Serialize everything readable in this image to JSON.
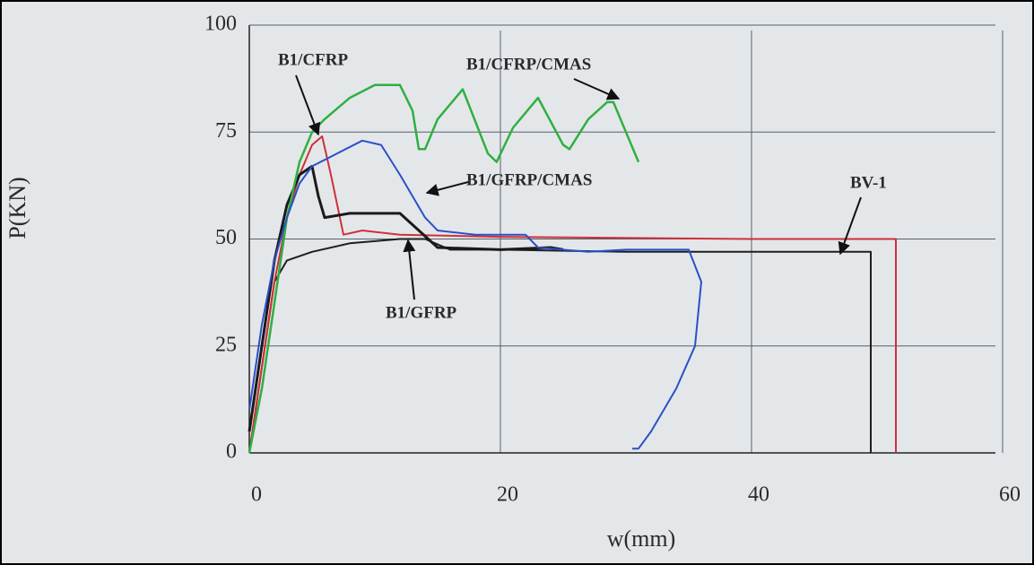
{
  "chart_data": {
    "type": "line",
    "x_label": "w(mm)",
    "y_label": "P(KN)",
    "xlim": [
      0,
      60
    ],
    "ylim": [
      0,
      100
    ],
    "xticks": [
      0,
      20,
      40,
      60
    ],
    "yticks": [
      0,
      25,
      50,
      75,
      100
    ],
    "grid": true,
    "series": [
      {
        "name": "BV-1",
        "color": "#1e1e1e",
        "x": [
          0,
          1,
          2,
          3,
          5,
          8,
          12,
          14,
          16,
          20,
          30,
          40,
          49.5,
          49.5
        ],
        "values": [
          0,
          20,
          40,
          45,
          47,
          49,
          50,
          50,
          47.5,
          47.5,
          47,
          47,
          47,
          0
        ]
      },
      {
        "name": "B1/CFRP",
        "color": "#d0303a",
        "x": [
          0,
          1,
          2,
          3,
          4,
          5,
          5.8,
          6.5,
          7.5,
          9,
          12,
          20,
          40,
          51.5,
          51.5
        ],
        "values": [
          0,
          20,
          40,
          55,
          65,
          72,
          74,
          65,
          51,
          52,
          51,
          50.5,
          50,
          50,
          0
        ]
      },
      {
        "name": "B1/GFRP",
        "color": "#1a1a1a",
        "x": [
          0,
          1,
          2,
          3,
          4,
          5,
          5.5,
          6,
          8,
          10,
          12,
          15,
          20,
          24,
          25
        ],
        "values": [
          5,
          25,
          45,
          58,
          65,
          67,
          60,
          55,
          56,
          56,
          56,
          48,
          47.5,
          48,
          47.5
        ]
      },
      {
        "name": "B1/CFRP/CMAS",
        "color": "#2fb040",
        "x": [
          0,
          1,
          2,
          3,
          4,
          5,
          6,
          8,
          10,
          12,
          13,
          13.5,
          14,
          15,
          17,
          19,
          19.7,
          21,
          23,
          25,
          25.5,
          27,
          28.5,
          29,
          30,
          31
        ],
        "values": [
          0,
          15,
          35,
          55,
          68,
          75,
          78,
          83,
          86,
          86,
          80,
          71,
          71,
          78,
          85,
          70,
          68,
          76,
          83,
          72,
          71,
          78,
          82,
          82,
          75,
          68
        ]
      },
      {
        "name": "B1/GFRP/CMAS",
        "color": "#2a50c8",
        "x": [
          0,
          1,
          2,
          3,
          4,
          5,
          7,
          9,
          10.5,
          12,
          13,
          14,
          15,
          18,
          22,
          23,
          27,
          30,
          35,
          36,
          35.5,
          34,
          32,
          31,
          30.5
        ],
        "values": [
          10,
          30,
          45,
          55,
          63,
          67,
          70,
          73,
          72,
          65,
          60,
          55,
          52,
          51,
          51,
          48,
          47,
          47.5,
          47.5,
          40,
          25,
          15,
          5,
          1,
          1
        ]
      }
    ]
  }
}
